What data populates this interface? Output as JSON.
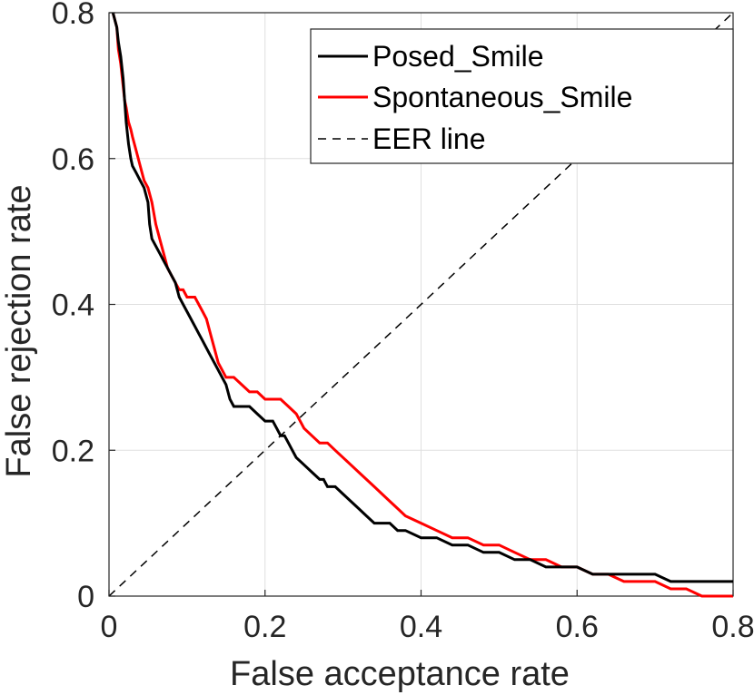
{
  "chart_data": {
    "type": "line",
    "title": "",
    "xlabel": "False acceptance rate",
    "ylabel": "False rejection rate",
    "xlim": [
      0,
      0.8
    ],
    "ylim": [
      0,
      0.8
    ],
    "xticks": [
      0,
      0.2,
      0.4,
      0.6,
      0.8
    ],
    "yticks": [
      0,
      0.2,
      0.4,
      0.6,
      0.8
    ],
    "xtick_labels": [
      "0",
      "0.2",
      "0.4",
      "0.6",
      "0.8"
    ],
    "ytick_labels": [
      "0",
      "0.2",
      "0.4",
      "0.6",
      "0.8"
    ],
    "grid": true,
    "legend_position": "top-right",
    "series": [
      {
        "name": "Posed_Smile",
        "color": "#000000",
        "style": "solid",
        "x": [
          0.005,
          0.01,
          0.012,
          0.015,
          0.018,
          0.02,
          0.022,
          0.025,
          0.028,
          0.03,
          0.035,
          0.04,
          0.045,
          0.05,
          0.052,
          0.055,
          0.06,
          0.065,
          0.07,
          0.075,
          0.08,
          0.085,
          0.09,
          0.095,
          0.1,
          0.11,
          0.115,
          0.12,
          0.125,
          0.13,
          0.135,
          0.14,
          0.145,
          0.15,
          0.155,
          0.16,
          0.17,
          0.18,
          0.19,
          0.2,
          0.21,
          0.215,
          0.22,
          0.225,
          0.23,
          0.235,
          0.24,
          0.25,
          0.26,
          0.27,
          0.275,
          0.28,
          0.29,
          0.3,
          0.31,
          0.32,
          0.33,
          0.34,
          0.35,
          0.36,
          0.37,
          0.38,
          0.4,
          0.42,
          0.44,
          0.46,
          0.48,
          0.5,
          0.52,
          0.54,
          0.56,
          0.58,
          0.6,
          0.62,
          0.64,
          0.66,
          0.68,
          0.7,
          0.72,
          0.74,
          0.76,
          0.78,
          0.8
        ],
        "y": [
          0.8,
          0.78,
          0.76,
          0.74,
          0.71,
          0.68,
          0.65,
          0.62,
          0.6,
          0.59,
          0.58,
          0.57,
          0.56,
          0.54,
          0.51,
          0.49,
          0.48,
          0.47,
          0.46,
          0.45,
          0.44,
          0.43,
          0.41,
          0.4,
          0.39,
          0.37,
          0.36,
          0.35,
          0.34,
          0.33,
          0.32,
          0.31,
          0.3,
          0.29,
          0.27,
          0.26,
          0.26,
          0.26,
          0.25,
          0.24,
          0.24,
          0.23,
          0.22,
          0.22,
          0.21,
          0.2,
          0.19,
          0.18,
          0.17,
          0.16,
          0.16,
          0.15,
          0.15,
          0.14,
          0.13,
          0.12,
          0.11,
          0.1,
          0.1,
          0.1,
          0.09,
          0.09,
          0.08,
          0.08,
          0.07,
          0.07,
          0.06,
          0.06,
          0.05,
          0.05,
          0.04,
          0.04,
          0.04,
          0.03,
          0.03,
          0.03,
          0.03,
          0.03,
          0.02,
          0.02,
          0.02,
          0.02,
          0.02
        ]
      },
      {
        "name": "Spontaneous_Smile",
        "color": "#ff0000",
        "style": "solid",
        "x": [
          0.005,
          0.01,
          0.012,
          0.015,
          0.018,
          0.02,
          0.022,
          0.025,
          0.028,
          0.03,
          0.035,
          0.04,
          0.045,
          0.05,
          0.055,
          0.06,
          0.065,
          0.07,
          0.075,
          0.08,
          0.085,
          0.09,
          0.095,
          0.1,
          0.11,
          0.115,
          0.12,
          0.125,
          0.13,
          0.135,
          0.14,
          0.145,
          0.15,
          0.16,
          0.17,
          0.18,
          0.19,
          0.2,
          0.21,
          0.22,
          0.23,
          0.24,
          0.25,
          0.26,
          0.27,
          0.28,
          0.29,
          0.3,
          0.31,
          0.32,
          0.33,
          0.34,
          0.35,
          0.36,
          0.37,
          0.38,
          0.4,
          0.42,
          0.44,
          0.46,
          0.48,
          0.5,
          0.52,
          0.54,
          0.56,
          0.58,
          0.6,
          0.62,
          0.64,
          0.66,
          0.68,
          0.7,
          0.72,
          0.74,
          0.76,
          0.78,
          0.8
        ],
        "y": [
          0.8,
          0.78,
          0.75,
          0.73,
          0.7,
          0.68,
          0.67,
          0.65,
          0.64,
          0.63,
          0.61,
          0.59,
          0.57,
          0.56,
          0.54,
          0.51,
          0.49,
          0.47,
          0.45,
          0.44,
          0.43,
          0.42,
          0.42,
          0.41,
          0.41,
          0.4,
          0.39,
          0.38,
          0.36,
          0.34,
          0.32,
          0.31,
          0.3,
          0.3,
          0.29,
          0.28,
          0.28,
          0.27,
          0.27,
          0.27,
          0.26,
          0.25,
          0.23,
          0.22,
          0.21,
          0.21,
          0.2,
          0.19,
          0.18,
          0.17,
          0.16,
          0.15,
          0.14,
          0.13,
          0.12,
          0.11,
          0.1,
          0.09,
          0.08,
          0.08,
          0.07,
          0.07,
          0.06,
          0.05,
          0.05,
          0.04,
          0.04,
          0.03,
          0.03,
          0.02,
          0.02,
          0.02,
          0.01,
          0.01,
          0.0,
          0.0,
          0.0
        ]
      },
      {
        "name": "EER line",
        "color": "#000000",
        "style": "dashed",
        "x": [
          0,
          0.8
        ],
        "y": [
          0,
          0.8
        ]
      }
    ]
  }
}
